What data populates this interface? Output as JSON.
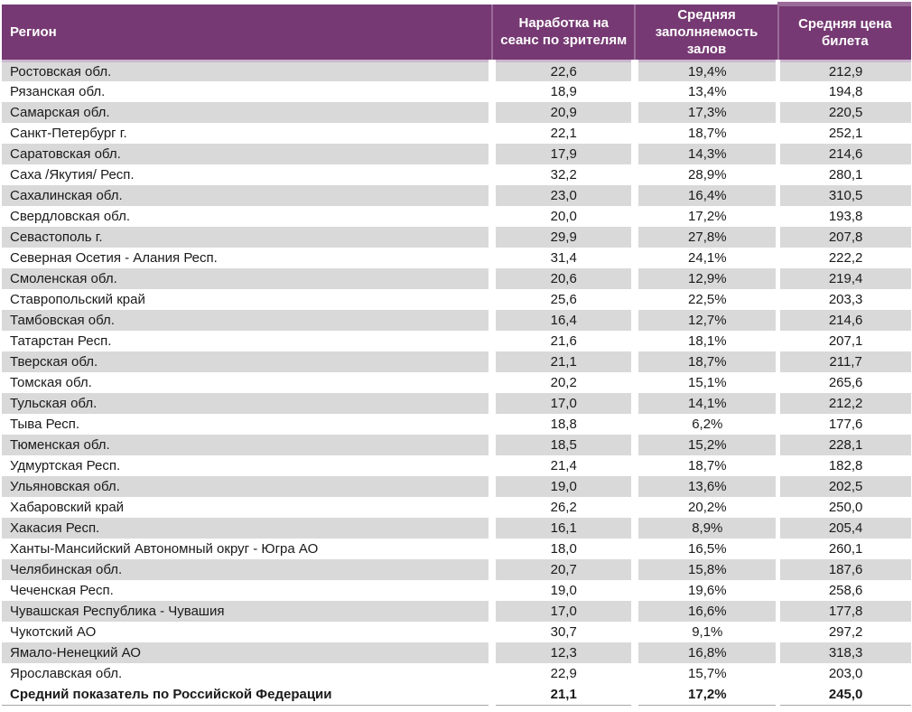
{
  "chart_data": {
    "type": "table",
    "columns": [
      "Регион",
      "Наработка на сеанс по зрителям",
      "Средняя заполняемость залов",
      "Средняя цена билета"
    ],
    "rows": [
      [
        "Ростовская обл.",
        "22,6",
        "19,4%",
        "212,9"
      ],
      [
        "Рязанская обл.",
        "18,9",
        "13,4%",
        "194,8"
      ],
      [
        "Самарская обл.",
        "20,9",
        "17,3%",
        "220,5"
      ],
      [
        "Санкт-Петербург г.",
        "22,1",
        "18,7%",
        "252,1"
      ],
      [
        "Саратовская обл.",
        "17,9",
        "14,3%",
        "214,6"
      ],
      [
        "Саха /Якутия/ Респ.",
        "32,2",
        "28,9%",
        "280,1"
      ],
      [
        "Сахалинская обл.",
        "23,0",
        "16,4%",
        "310,5"
      ],
      [
        "Свердловская обл.",
        "20,0",
        "17,2%",
        "193,8"
      ],
      [
        "Севастополь г.",
        "29,9",
        "27,8%",
        "207,8"
      ],
      [
        "Северная Осетия - Алания Респ.",
        "31,4",
        "24,1%",
        "222,2"
      ],
      [
        "Смоленская обл.",
        "20,6",
        "12,9%",
        "219,4"
      ],
      [
        "Ставропольский край",
        "25,6",
        "22,5%",
        "203,3"
      ],
      [
        "Тамбовская обл.",
        "16,4",
        "12,7%",
        "214,6"
      ],
      [
        "Татарстан Респ.",
        "21,6",
        "18,1%",
        "207,1"
      ],
      [
        "Тверская обл.",
        "21,1",
        "18,7%",
        "211,7"
      ],
      [
        "Томская обл.",
        "20,2",
        "15,1%",
        "265,6"
      ],
      [
        "Тульская обл.",
        "17,0",
        "14,1%",
        "212,2"
      ],
      [
        "Тыва Респ.",
        "18,8",
        "6,2%",
        "177,6"
      ],
      [
        "Тюменская обл.",
        "18,5",
        "15,2%",
        "228,1"
      ],
      [
        "Удмуртская Респ.",
        "21,4",
        "18,7%",
        "182,8"
      ],
      [
        "Ульяновская обл.",
        "19,0",
        "13,6%",
        "202,5"
      ],
      [
        "Хабаровский край",
        "26,2",
        "20,2%",
        "250,0"
      ],
      [
        "Хакасия Респ.",
        "16,1",
        "8,9%",
        "205,4"
      ],
      [
        "Ханты-Мансийский Автономный округ - Югра АО",
        "18,0",
        "16,5%",
        "260,1"
      ],
      [
        "Челябинская обл.",
        "20,7",
        "15,8%",
        "187,6"
      ],
      [
        "Чеченская Респ.",
        "19,0",
        "19,6%",
        "258,6"
      ],
      [
        "Чувашская Республика - Чувашия",
        "17,0",
        "16,6%",
        "177,8"
      ],
      [
        "Чукотский АО",
        "30,7",
        "9,1%",
        "297,2"
      ],
      [
        "Ямало-Ненецкий АО",
        "12,3",
        "16,8%",
        "318,3"
      ],
      [
        "Ярославская обл.",
        "22,9",
        "15,7%",
        "203,0"
      ]
    ],
    "total_row": [
      "Средний показатель по Российской Федерации",
      "21,1",
      "17,2%",
      "245,0"
    ],
    "layout": {
      "stripe_pattern": "odd-rows-gray",
      "numeric_alignment": "center",
      "region_alignment": "left"
    }
  },
  "colors": {
    "header_bg": "#763973",
    "header_text": "#ffffff",
    "header_separator": "#9a6b99",
    "header_bottom_line": "#cbb7d0",
    "row_stripe": "#d9d9d9",
    "body_text": "#1a1a1a",
    "total_border": "#a6a6a6"
  }
}
